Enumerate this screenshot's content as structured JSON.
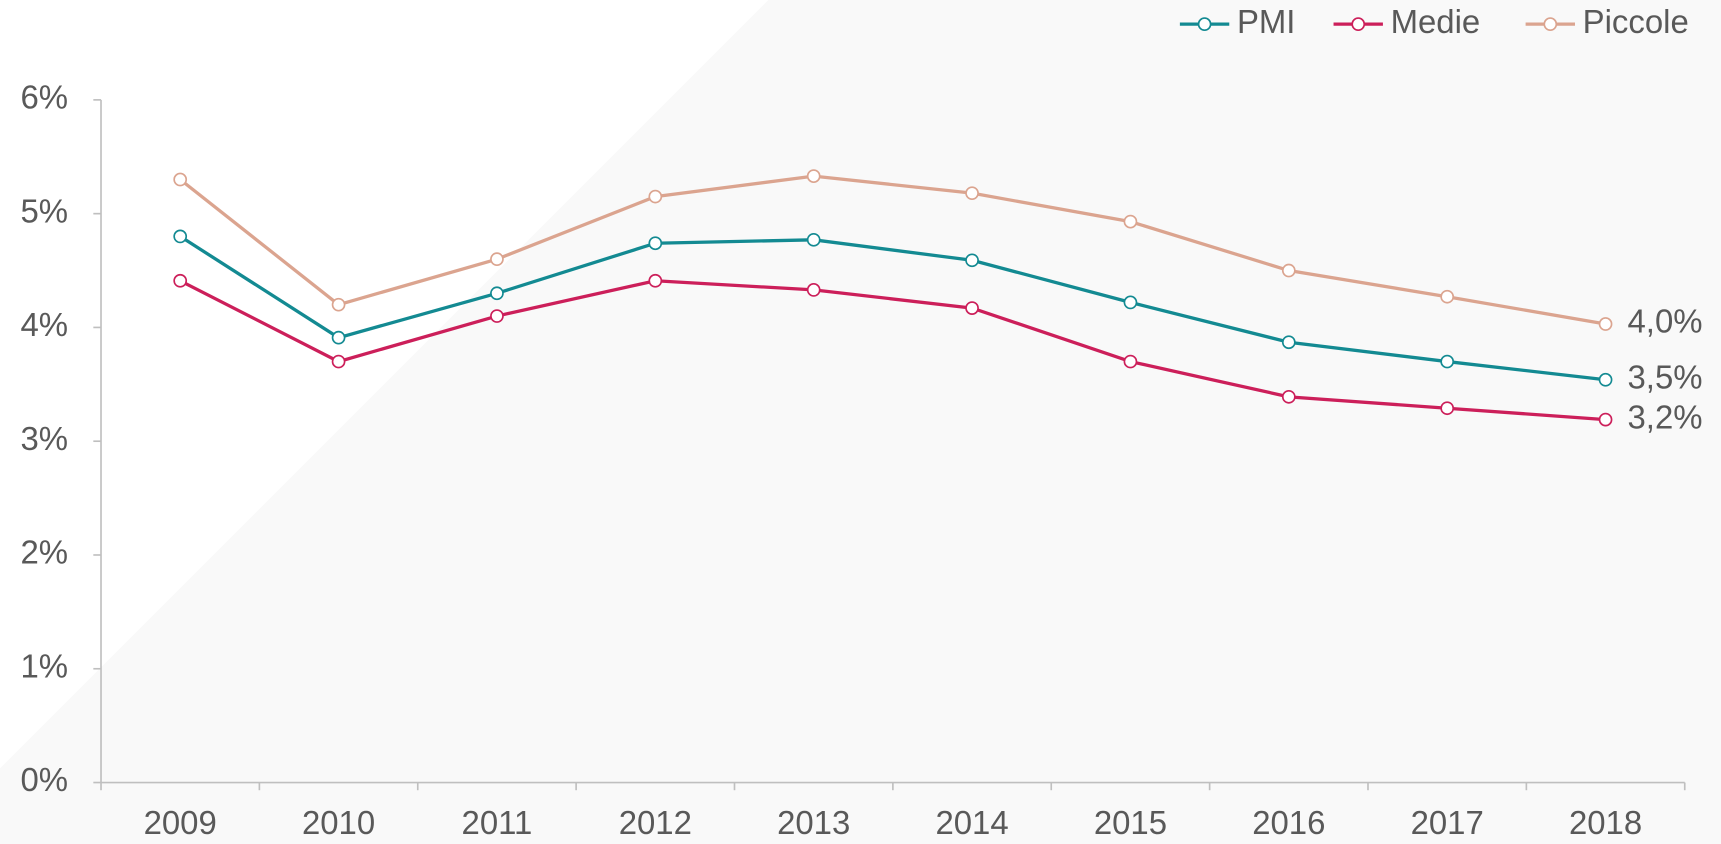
{
  "chart_data": {
    "type": "line",
    "categories": [
      "2009",
      "2010",
      "2011",
      "2012",
      "2013",
      "2014",
      "2015",
      "2016",
      "2017",
      "2018"
    ],
    "series": [
      {
        "name": "PMI",
        "color": "#138a92",
        "values": [
          4.8,
          3.91,
          4.3,
          4.74,
          4.77,
          4.59,
          4.22,
          3.87,
          3.7,
          3.54
        ],
        "value_labels": [
          null,
          null,
          null,
          null,
          null,
          null,
          null,
          null,
          null,
          "3,5%"
        ]
      },
      {
        "name": "Medie",
        "color": "#cc1f5a",
        "values": [
          4.41,
          3.7,
          4.1,
          4.41,
          4.33,
          4.17,
          3.7,
          3.39,
          3.29,
          3.19
        ],
        "value_labels": [
          null,
          null,
          null,
          null,
          null,
          null,
          null,
          null,
          null,
          "3,2%"
        ]
      },
      {
        "name": "Piccole",
        "color": "#dba48f",
        "values": [
          5.3,
          4.2,
          4.6,
          5.15,
          5.33,
          5.18,
          4.93,
          4.5,
          4.27,
          4.03
        ],
        "value_labels": [
          null,
          null,
          null,
          null,
          null,
          null,
          null,
          null,
          null,
          "4,0%"
        ]
      }
    ],
    "ylim": [
      0,
      6
    ],
    "yticks": [
      {
        "value": 0,
        "label": "0%"
      },
      {
        "value": 1,
        "label": "1%"
      },
      {
        "value": 2,
        "label": "2%"
      },
      {
        "value": 3,
        "label": "3%"
      },
      {
        "value": 4,
        "label": "4%"
      },
      {
        "value": 5,
        "label": "5%"
      },
      {
        "value": 6,
        "label": "6%"
      }
    ],
    "legend": "top-right",
    "grid": false
  }
}
